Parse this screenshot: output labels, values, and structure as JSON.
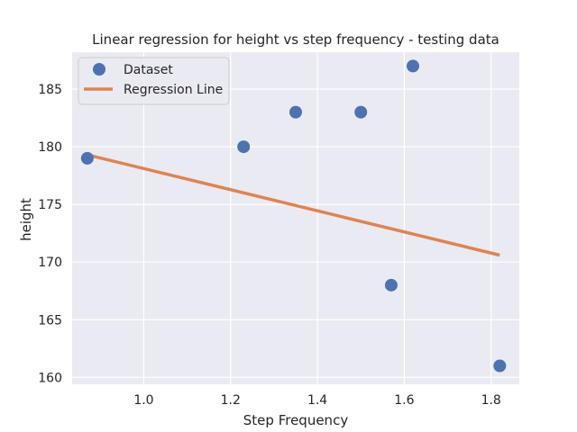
{
  "chart_data": {
    "type": "scatter",
    "title": "Linear regression for height vs step frequency - testing data",
    "xlabel": "Step Frequency",
    "ylabel": "height",
    "xlim": [
      0.835,
      1.865
    ],
    "ylim": [
      159.4,
      188.2
    ],
    "xticks": [
      1.0,
      1.2,
      1.4,
      1.6,
      1.8
    ],
    "yticks": [
      160,
      165,
      170,
      175,
      180,
      185
    ],
    "xtick_labels": [
      "1.0",
      "1.2",
      "1.4",
      "1.6",
      "1.8"
    ],
    "ytick_labels": [
      "160",
      "165",
      "170",
      "175",
      "180",
      "185"
    ],
    "grid": true,
    "background": "#eaeaf2",
    "legend_position": "top-left",
    "series": [
      {
        "name": "Dataset",
        "kind": "scatter",
        "color": "#4c72b0",
        "points": [
          {
            "x": 0.87,
            "y": 179
          },
          {
            "x": 1.23,
            "y": 180
          },
          {
            "x": 1.35,
            "y": 183
          },
          {
            "x": 1.5,
            "y": 183
          },
          {
            "x": 1.57,
            "y": 168
          },
          {
            "x": 1.62,
            "y": 187
          },
          {
            "x": 1.82,
            "y": 161
          }
        ]
      },
      {
        "name": "Regression Line",
        "kind": "line",
        "color": "#dd8452",
        "points": [
          {
            "x": 0.87,
            "y": 179.3
          },
          {
            "x": 1.82,
            "y": 170.6
          }
        ]
      }
    ]
  }
}
